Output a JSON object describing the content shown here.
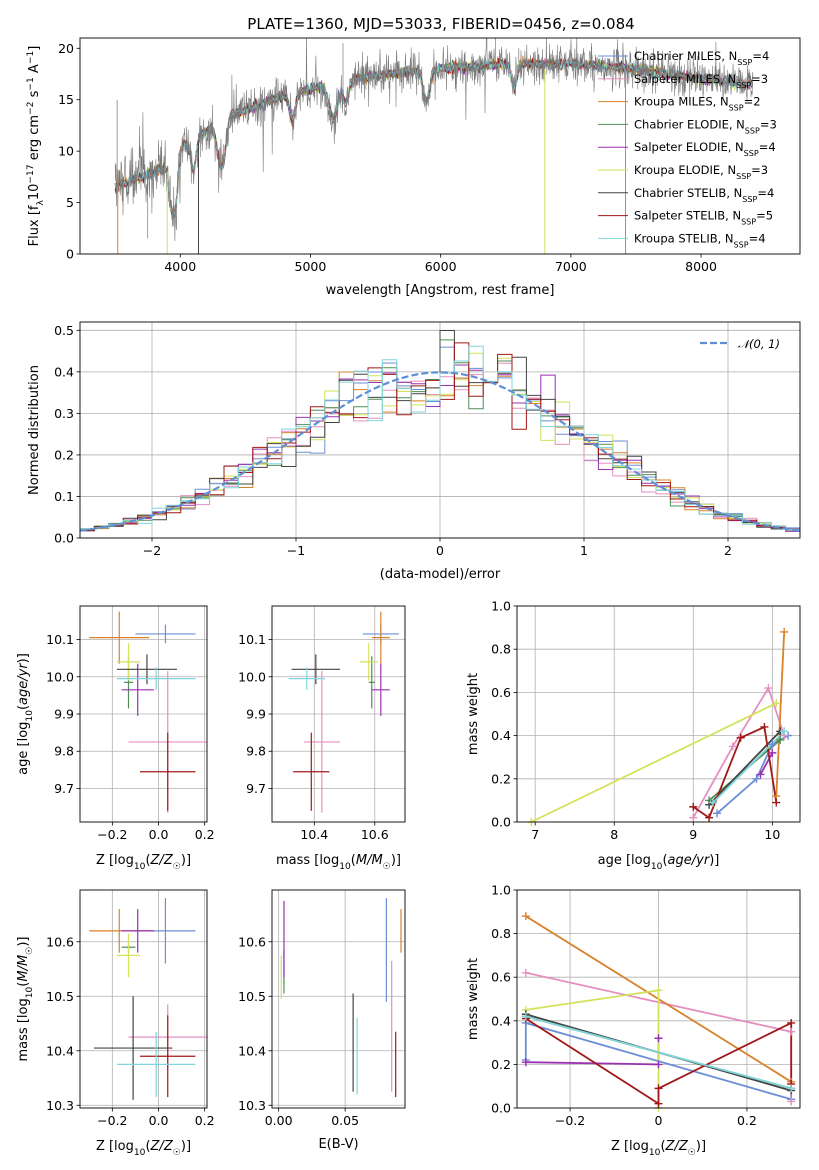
{
  "figure": {
    "title": "PLATE=1360, MJD=53033, FIBERID=0456, z=0.084"
  },
  "legend_top": [
    {
      "label": "Chabrier MILES, N",
      "sub": "SSP",
      "suffix": "=4",
      "color": "#6a8fd6"
    },
    {
      "label": "Salpeter MILES, N",
      "sub": "SSP",
      "suffix": "=3",
      "color": "#e58fc0"
    },
    {
      "label": "Kroupa MILES, N",
      "sub": "SSP",
      "suffix": "=2",
      "color": "#d9822b"
    },
    {
      "label": "Chabrier ELODIE, N",
      "sub": "SSP",
      "suffix": "=3",
      "color": "#4f8f55"
    },
    {
      "label": "Salpeter ELODIE, N",
      "sub": "SSP",
      "suffix": "=4",
      "color": "#9b30b0"
    },
    {
      "label": "Kroupa ELODIE, N",
      "sub": "SSP",
      "suffix": "=3",
      "color": "#d4e25a"
    },
    {
      "label": "Chabrier STELIB, N",
      "sub": "SSP",
      "suffix": "=4",
      "color": "#444444"
    },
    {
      "label": "Salpeter STELIB, N",
      "sub": "SSP",
      "suffix": "=5",
      "color": "#a01818"
    },
    {
      "label": "Kroupa STELIB, N",
      "sub": "SSP",
      "suffix": "=4",
      "color": "#7fd6dc"
    }
  ],
  "chart_data": [
    {
      "id": "spectrum",
      "type": "line",
      "xlabel": "wavelength [Angstrom, rest frame]",
      "ylabel": "Flux [f_λ 10^-17 erg cm^-2 s^-1 A^-1]",
      "xlim": [
        3230,
        8760
      ],
      "ylim": [
        0,
        21
      ],
      "xticks": [
        4000,
        5000,
        6000,
        7000,
        8000
      ],
      "yticks": [
        0,
        5,
        10,
        15,
        20
      ],
      "spectrum_range": [
        3500,
        8400
      ],
      "continuum_knots": [
        [
          3500,
          6.5
        ],
        [
          3700,
          7.5
        ],
        [
          3900,
          8.5
        ],
        [
          4000,
          10.5
        ],
        [
          4150,
          11.5
        ],
        [
          4400,
          13.5
        ],
        [
          4700,
          15
        ],
        [
          5000,
          16
        ],
        [
          5200,
          16.8
        ],
        [
          5600,
          17.5
        ],
        [
          6000,
          18
        ],
        [
          6500,
          18.5
        ],
        [
          7000,
          18.5
        ],
        [
          7500,
          18
        ],
        [
          8000,
          17
        ],
        [
          8400,
          16.5
        ]
      ]
    },
    {
      "id": "residuals",
      "type": "line",
      "xlabel": "(data-model)/error",
      "ylabel": "Normed distribution",
      "xlim": [
        -2.5,
        2.5
      ],
      "ylim": [
        0,
        0.52
      ],
      "xticks": [
        -2,
        -1,
        0,
        1,
        2
      ],
      "yticks": [
        0.0,
        0.1,
        0.2,
        0.3,
        0.4,
        0.5
      ],
      "legend": "𝒩(0, 1)",
      "bin_width": 0.1,
      "gaussian": {
        "mean": 0,
        "sigma": 1,
        "color": "#5f8fd6"
      }
    },
    {
      "id": "age-vs-Z",
      "type": "scatter",
      "xlabel": "Z [log10(Z/Z☉)]",
      "ylabel": "age  [log10(age/yr)]",
      "xlim": [
        -0.34,
        0.21
      ],
      "ylim": [
        9.61,
        10.19
      ],
      "xticks": [
        -0.2,
        0.0,
        0.2
      ],
      "yticks": [
        9.7,
        9.8,
        9.9,
        10.0,
        10.1
      ],
      "points": [
        {
          "s": 0,
          "x": 0.03,
          "y": 10.115,
          "ex": 0.13,
          "ey": 0.025
        },
        {
          "s": 1,
          "x": 0.04,
          "y": 9.825,
          "ex": 0.17,
          "ey": 0.19
        },
        {
          "s": 2,
          "x": -0.17,
          "y": 10.105,
          "ex": 0.13,
          "ey": 0.07
        },
        {
          "s": 3,
          "x": -0.13,
          "y": 9.985,
          "ex": 0.02,
          "ey": 0.07
        },
        {
          "s": 4,
          "x": -0.09,
          "y": 9.965,
          "ex": 0.07,
          "ey": 0.07
        },
        {
          "s": 5,
          "x": -0.13,
          "y": 10.04,
          "ex": 0.05,
          "ey": 0.05
        },
        {
          "s": 6,
          "x": -0.05,
          "y": 10.02,
          "ex": 0.13,
          "ey": 0.04
        },
        {
          "s": 7,
          "x": 0.04,
          "y": 9.745,
          "ex": 0.12,
          "ey": 0.105
        },
        {
          "s": 8,
          "x": -0.01,
          "y": 9.995,
          "ex": 0.17,
          "ey": 0.03
        }
      ]
    },
    {
      "id": "age-vs-mass",
      "type": "scatter",
      "xlabel": "mass [log10(M/M☉)]",
      "ylabel": "",
      "xlim": [
        10.26,
        10.7
      ],
      "ylim": [
        9.61,
        10.19
      ],
      "xticks": [
        10.4,
        10.6
      ],
      "yticks": [
        9.7,
        9.8,
        9.9,
        10.0,
        10.1
      ],
      "points": [
        {
          "s": 0,
          "x": 10.62,
          "y": 10.115,
          "ex": 0.06,
          "ey": 0.025
        },
        {
          "s": 1,
          "x": 10.425,
          "y": 9.825,
          "ex": 0.06,
          "ey": 0.19
        },
        {
          "s": 2,
          "x": 10.62,
          "y": 10.105,
          "ex": 0.03,
          "ey": 0.07
        },
        {
          "s": 3,
          "x": 10.59,
          "y": 9.985,
          "ex": 0.01,
          "ey": 0.07
        },
        {
          "s": 4,
          "x": 10.62,
          "y": 9.965,
          "ex": 0.03,
          "ey": 0.07
        },
        {
          "s": 5,
          "x": 10.58,
          "y": 10.04,
          "ex": 0.03,
          "ey": 0.05
        },
        {
          "s": 6,
          "x": 10.405,
          "y": 10.02,
          "ex": 0.08,
          "ey": 0.04
        },
        {
          "s": 7,
          "x": 10.39,
          "y": 9.745,
          "ex": 0.06,
          "ey": 0.105
        },
        {
          "s": 8,
          "x": 10.375,
          "y": 9.995,
          "ex": 0.06,
          "ey": 0.03
        }
      ]
    },
    {
      "id": "massweight-vs-age",
      "type": "line",
      "xlabel": "age  [log10(age/yr)]",
      "ylabel": "mass weight",
      "xlim": [
        6.77,
        10.35
      ],
      "ylim": [
        0,
        1
      ],
      "xticks": [
        7,
        8,
        9,
        10
      ],
      "yticks": [
        0.0,
        0.2,
        0.4,
        0.6,
        0.8,
        1.0
      ],
      "series": [
        {
          "s": 0,
          "x": [
            9.3,
            9.8,
            10.0,
            10.2
          ],
          "y": [
            0.04,
            0.2,
            0.36,
            0.4
          ]
        },
        {
          "s": 1,
          "x": [
            9.0,
            9.5,
            9.95,
            10.15
          ],
          "y": [
            0.02,
            0.35,
            0.62,
            0.4
          ]
        },
        {
          "s": 2,
          "x": [
            10.05,
            10.15
          ],
          "y": [
            0.12,
            0.88
          ]
        },
        {
          "s": 3,
          "x": [
            9.2,
            10.1
          ],
          "y": [
            0.1,
            0.38
          ]
        },
        {
          "s": 4,
          "x": [
            9.85,
            10.0
          ],
          "y": [
            0.22,
            0.32
          ]
        },
        {
          "s": 5,
          "x": [
            6.95,
            10.05
          ],
          "y": [
            0.0,
            0.55
          ]
        },
        {
          "s": 6,
          "x": [
            9.2,
            10.1
          ],
          "y": [
            0.08,
            0.42
          ]
        },
        {
          "s": 7,
          "x": [
            9.0,
            9.2,
            9.6,
            9.9,
            10.05
          ],
          "y": [
            0.07,
            0.02,
            0.39,
            0.44,
            0.09
          ]
        },
        {
          "s": 8,
          "x": [
            9.25,
            10.15
          ],
          "y": [
            0.09,
            0.42
          ]
        }
      ]
    },
    {
      "id": "mass-vs-Z",
      "type": "scatter",
      "xlabel": "Z [log10(Z/Z☉)]",
      "ylabel": "mass [log10(M/M☉)]",
      "xlim": [
        -0.34,
        0.21
      ],
      "ylim": [
        10.295,
        10.695
      ],
      "xticks": [
        -0.2,
        0.0,
        0.2
      ],
      "yticks": [
        10.3,
        10.4,
        10.5,
        10.6
      ],
      "points": [
        {
          "s": 0,
          "x": 0.03,
          "y": 10.62,
          "ex": 0.13,
          "ey": 0.06
        },
        {
          "s": 1,
          "x": 0.04,
          "y": 10.425,
          "ex": 0.17,
          "ey": 0.06
        },
        {
          "s": 2,
          "x": -0.17,
          "y": 10.62,
          "ex": 0.13,
          "ey": 0.04
        },
        {
          "s": 3,
          "x": -0.13,
          "y": 10.59,
          "ex": 0.03,
          "ey": 0.01
        },
        {
          "s": 4,
          "x": -0.09,
          "y": 10.62,
          "ex": 0.07,
          "ey": 0.04
        },
        {
          "s": 5,
          "x": -0.13,
          "y": 10.575,
          "ex": 0.05,
          "ey": 0.04
        },
        {
          "s": 6,
          "x": -0.11,
          "y": 10.405,
          "ex": 0.17,
          "ey": 0.095
        },
        {
          "s": 7,
          "x": 0.04,
          "y": 10.39,
          "ex": 0.12,
          "ey": 0.075
        },
        {
          "s": 8,
          "x": -0.01,
          "y": 10.375,
          "ex": 0.17,
          "ey": 0.06
        }
      ]
    },
    {
      "id": "mass-vs-EBV",
      "type": "scatter",
      "xlabel": "E(B-V)",
      "ylabel": "",
      "xlim": [
        -0.005,
        0.095
      ],
      "ylim": [
        10.295,
        10.695
      ],
      "xticks": [
        0.0,
        0.05
      ],
      "yticks": [
        10.3,
        10.4,
        10.5,
        10.6
      ],
      "points": [
        {
          "s": 0,
          "x": 0.081,
          "y": 10.585,
          "ex": 0,
          "ey": 0.095
        },
        {
          "s": 1,
          "x": 0.085,
          "y": 10.445,
          "ex": 0,
          "ey": 0.12
        },
        {
          "s": 2,
          "x": 0.092,
          "y": 10.62,
          "ex": 0,
          "ey": 0.04
        },
        {
          "s": 3,
          "x": 0.004,
          "y": 10.545,
          "ex": 0,
          "ey": 0.04
        },
        {
          "s": 4,
          "x": 0.004,
          "y": 10.605,
          "ex": 0,
          "ey": 0.07
        },
        {
          "s": 5,
          "x": 0.002,
          "y": 10.535,
          "ex": 0,
          "ey": 0.04
        },
        {
          "s": 6,
          "x": 0.056,
          "y": 10.415,
          "ex": 0,
          "ey": 0.09
        },
        {
          "s": 7,
          "x": 0.088,
          "y": 10.375,
          "ex": 0,
          "ey": 0.06
        },
        {
          "s": 8,
          "x": 0.059,
          "y": 10.39,
          "ex": 0,
          "ey": 0.07
        }
      ]
    },
    {
      "id": "massweight-vs-Z",
      "type": "line",
      "xlabel": "Z [log10(Z/Z☉)]",
      "ylabel": "mass weight",
      "xlim": [
        -0.32,
        0.32
      ],
      "ylim": [
        0,
        1
      ],
      "xticks": [
        -0.2,
        0.0,
        0.2
      ],
      "yticks": [
        0.0,
        0.2,
        0.4,
        0.6,
        0.8,
        1.0
      ],
      "series": [
        {
          "s": 0,
          "x": [
            -0.3,
            -0.3,
            0.3
          ],
          "y": [
            0.22,
            0.39,
            0.04
          ]
        },
        {
          "s": 1,
          "x": [
            -0.3,
            0.3,
            0.3
          ],
          "y": [
            0.62,
            0.35,
            0.03
          ]
        },
        {
          "s": 2,
          "x": [
            -0.3,
            0.3
          ],
          "y": [
            0.88,
            0.12
          ]
        },
        {
          "s": 3,
          "x": [
            -0.3,
            0.3
          ],
          "y": [
            0.42,
            0.09
          ]
        },
        {
          "s": 4,
          "x": [
            -0.3,
            0.0,
            0.0
          ],
          "y": [
            0.21,
            0.2,
            0.32
          ]
        },
        {
          "s": 5,
          "x": [
            -0.3,
            0.0,
            0.0
          ],
          "y": [
            0.45,
            0.54,
            0.0
          ]
        },
        {
          "s": 6,
          "x": [
            -0.3,
            0.3
          ],
          "y": [
            0.43,
            0.08
          ]
        },
        {
          "s": 7,
          "x": [
            -0.3,
            0.0,
            0.0,
            0.3,
            0.3
          ],
          "y": [
            0.41,
            0.02,
            0.09,
            0.39,
            0.11
          ]
        },
        {
          "s": 8,
          "x": [
            -0.3,
            0.3
          ],
          "y": [
            0.42,
            0.09
          ]
        }
      ]
    }
  ]
}
